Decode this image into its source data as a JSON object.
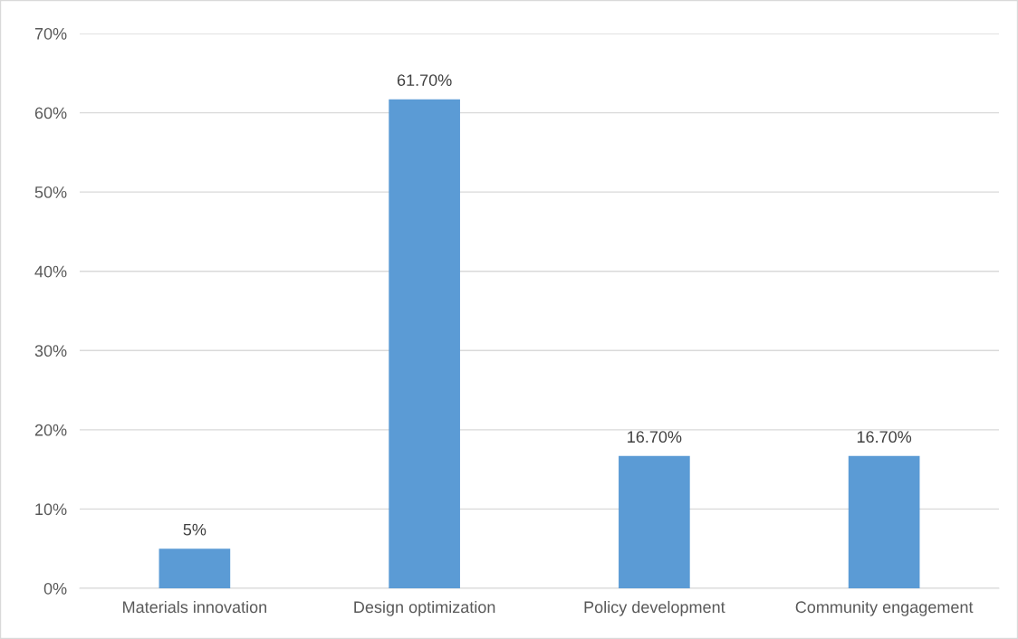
{
  "chart_data": {
    "type": "bar",
    "categories": [
      "Materials innovation",
      "Design optimization",
      "Policy development",
      "Community engagement"
    ],
    "values": [
      5,
      61.7,
      16.7,
      16.7
    ],
    "color": "#5b9bd5",
    "value_labels": [
      "5%",
      "61.70%",
      "16.70%",
      "16.70%"
    ],
    "ylim": [
      0,
      70
    ],
    "yticks": [
      {
        "value": 0,
        "label": "0%"
      },
      {
        "value": 10,
        "label": "10%"
      },
      {
        "value": 20,
        "label": "20%"
      },
      {
        "value": 30,
        "label": "30%"
      },
      {
        "value": 40,
        "label": "40%"
      },
      {
        "value": 50,
        "label": "50%"
      },
      {
        "value": 60,
        "label": "60%"
      },
      {
        "value": 70,
        "label": "70%"
      }
    ],
    "grid": "y"
  }
}
